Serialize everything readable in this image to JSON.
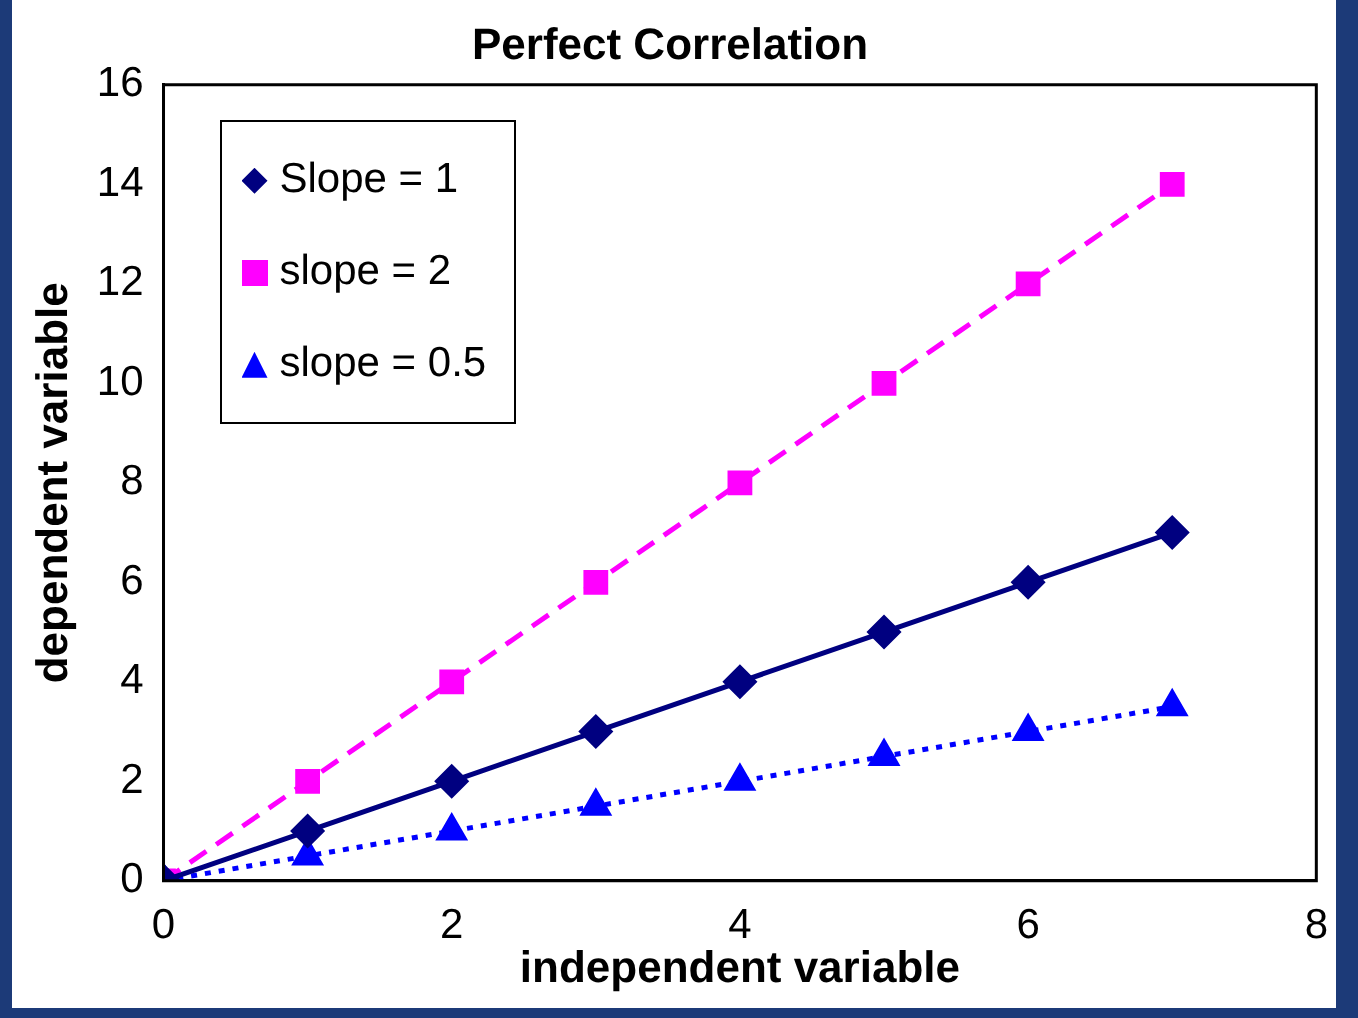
{
  "chart_data": {
    "type": "line",
    "title": "Perfect Correlation",
    "xlabel": "independent variable",
    "ylabel": "dependent variable",
    "x": [
      0,
      1,
      2,
      3,
      4,
      5,
      6,
      7
    ],
    "series": [
      {
        "name": "Slope = 1",
        "color": "#000080",
        "values": [
          0,
          1,
          2,
          3,
          4,
          5,
          6,
          7
        ],
        "marker": "diamond",
        "line_style": "solid"
      },
      {
        "name": "slope = 2",
        "color": "#ff00ff",
        "values": [
          0,
          2,
          4,
          6,
          8,
          10,
          12,
          14
        ],
        "marker": "square",
        "line_style": "dashed"
      },
      {
        "name": "slope = 0.5",
        "color": "#0000ff",
        "values": [
          0,
          0.5,
          1,
          1.5,
          2,
          2.5,
          3,
          3.5
        ],
        "marker": "triangle",
        "line_style": "dotted"
      }
    ],
    "xlim": [
      0,
      8
    ],
    "xticks": [
      0,
      2,
      4,
      6,
      8
    ],
    "ylim": [
      0,
      16
    ],
    "yticks": [
      0,
      2,
      4,
      6,
      8,
      10,
      12,
      14,
      16
    ],
    "grid": false,
    "legend": "top left"
  }
}
